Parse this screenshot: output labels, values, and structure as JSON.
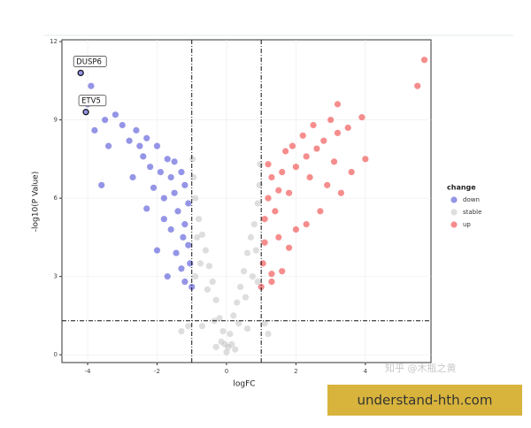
{
  "chart_data": {
    "type": "scatter",
    "xlabel": "logFC",
    "ylabel": "-log10(P Value)",
    "xlim": [
      -4.74,
      5.89
    ],
    "ylim": [
      -0.3,
      12.07
    ],
    "xticks": [
      -4,
      -2,
      0,
      2,
      4
    ],
    "yticks": [
      0,
      3,
      6,
      9,
      12
    ],
    "grid": true,
    "vlines": [
      -1,
      1
    ],
    "hline": 1.3,
    "legend": {
      "title": "change",
      "position": "right"
    },
    "series": [
      {
        "name": "down",
        "color": "#2b2bd0",
        "x": [
          -1.0,
          -1.05,
          -1.1,
          -1.2,
          -1.1,
          -1.2,
          -1.3,
          -1.4,
          -1.5,
          -1.6,
          -1.5,
          -1.7,
          -1.8,
          -1.9,
          -2.0,
          -1.6,
          -1.8,
          -2.1,
          -2.2,
          -2.3,
          -2.4,
          -2.5,
          -2.6,
          -2.8,
          -3.0,
          -3.2,
          -3.4,
          -3.5,
          -3.8,
          -4.0,
          -3.9,
          -3.6,
          -2.7,
          -2.0,
          -1.3,
          -1.25,
          -1.45,
          -4.05,
          -4.2,
          -2.3,
          -1.7,
          -1.2
        ],
        "y": [
          2.6,
          3.5,
          4.2,
          5.0,
          5.8,
          6.5,
          7.0,
          5.5,
          6.2,
          6.8,
          7.4,
          7.5,
          6.0,
          7.0,
          8.0,
          4.8,
          5.2,
          6.4,
          7.2,
          8.3,
          7.6,
          8.0,
          8.6,
          8.2,
          8.8,
          9.2,
          8.0,
          9.0,
          8.6,
          9.6,
          10.3,
          6.5,
          6.8,
          4.0,
          3.3,
          4.5,
          3.9,
          9.3,
          10.8,
          5.6,
          3.0,
          2.8
        ]
      },
      {
        "name": "stable",
        "color": "#bdbdbd",
        "x": [
          0,
          0.05,
          -0.05,
          0.1,
          -0.1,
          0.2,
          -0.2,
          0.3,
          -0.3,
          0.4,
          -0.4,
          0.5,
          -0.5,
          0.6,
          -0.6,
          0.7,
          -0.7,
          0.8,
          -0.8,
          0.9,
          -0.9,
          0.95,
          -0.95,
          0.15,
          -0.15,
          0.35,
          -0.35,
          0.55,
          -0.55,
          0.75,
          -0.75,
          0.85,
          -0.85,
          0.9,
          -0.9,
          1.2,
          -1.3,
          0.6,
          -0.7,
          0.25,
          -0.3,
          0.97,
          -0.98,
          1.1,
          -1.1
        ],
        "y": [
          0.1,
          0.3,
          0.4,
          0.8,
          0.9,
          1.5,
          1.4,
          2.0,
          2.1,
          2.6,
          2.8,
          3.2,
          3.4,
          3.9,
          4.0,
          4.5,
          4.6,
          5.0,
          5.2,
          5.8,
          6.0,
          6.5,
          6.8,
          0.4,
          0.5,
          1.2,
          1.3,
          2.2,
          2.5,
          3.0,
          3.5,
          4.0,
          4.5,
          2.8,
          3.0,
          0.8,
          0.9,
          1.0,
          1.1,
          0.2,
          0.3,
          7.3,
          7.5,
          1.2,
          1.1
        ]
      },
      {
        "name": "up",
        "color": "#ee1c1c",
        "x": [
          1.0,
          1.05,
          1.1,
          1.1,
          1.2,
          1.3,
          1.2,
          1.4,
          1.5,
          1.6,
          1.7,
          1.8,
          1.9,
          2.0,
          1.5,
          1.3,
          1.3,
          2.2,
          2.3,
          2.4,
          2.5,
          2.6,
          2.8,
          3.0,
          3.2,
          3.1,
          3.3,
          2.7,
          2.3,
          3.5,
          3.6,
          3.9,
          4.0,
          3.2,
          5.7,
          5.5,
          2.0,
          1.8,
          1.6,
          2.9
        ],
        "y": [
          2.6,
          3.5,
          4.3,
          5.2,
          6.0,
          6.8,
          7.3,
          5.5,
          6.3,
          7.0,
          7.8,
          6.2,
          8.0,
          7.2,
          4.5,
          3.1,
          2.8,
          8.4,
          7.6,
          6.8,
          8.8,
          7.9,
          8.2,
          9.0,
          8.5,
          7.4,
          6.2,
          5.5,
          5.0,
          8.7,
          7.0,
          9.1,
          7.5,
          9.6,
          11.3,
          10.3,
          4.8,
          4.1,
          3.2,
          6.5
        ]
      }
    ],
    "annotations": [
      {
        "text": "DUSP6",
        "x": -4.2,
        "y": 10.8
      },
      {
        "text": "ETV5",
        "x": -4.05,
        "y": 9.3
      }
    ]
  },
  "watermark": "知乎 @木瓶之黄",
  "banner": "understand-hth.com"
}
